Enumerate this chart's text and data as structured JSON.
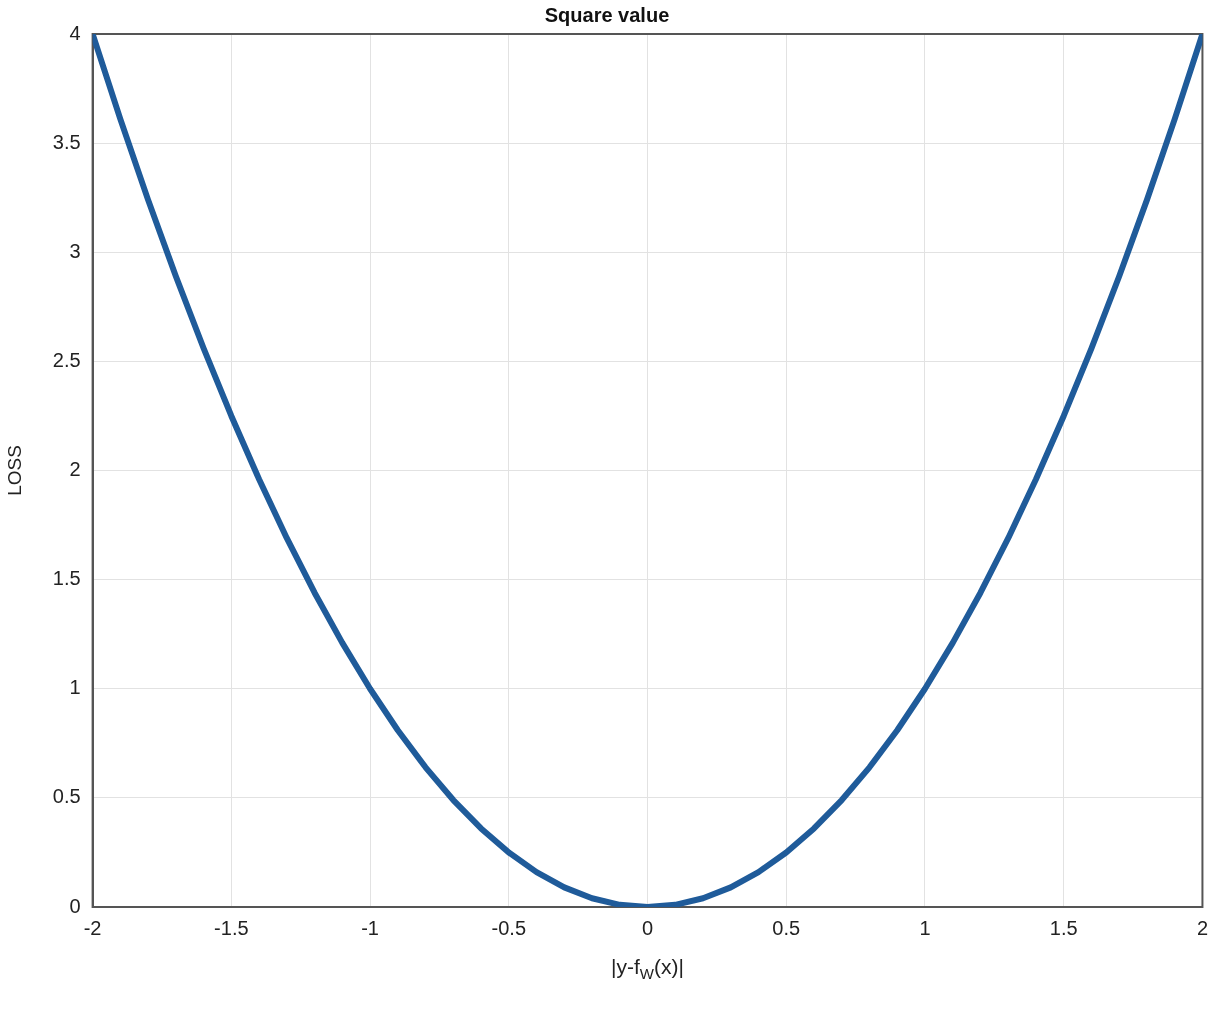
{
  "chart_data": {
    "type": "line",
    "title": "Square value",
    "xlabel": "|y-f$_{W}$(x)|",
    "ylabel": "LOSS",
    "x": [
      -2,
      -1.9,
      -1.8,
      -1.7,
      -1.6,
      -1.5,
      -1.4,
      -1.3,
      -1.2,
      -1.1,
      -1,
      -0.9,
      -0.8,
      -0.7,
      -0.6,
      -0.5,
      -0.4,
      -0.3,
      -0.2,
      -0.1,
      0,
      0.1,
      0.2,
      0.3,
      0.4,
      0.5,
      0.6,
      0.7,
      0.8,
      0.9,
      1,
      1.1,
      1.2,
      1.3,
      1.4,
      1.5,
      1.6,
      1.7,
      1.8,
      1.9,
      2
    ],
    "series": [
      {
        "color": "#1f5b9a",
        "values": [
          4,
          3.61,
          3.24,
          2.89,
          2.56,
          2.25,
          1.96,
          1.69,
          1.44,
          1.21,
          1,
          0.81,
          0.64,
          0.49,
          0.36,
          0.25,
          0.16,
          0.09,
          0.04,
          0.01,
          0,
          0.01,
          0.04,
          0.09,
          0.16,
          0.25,
          0.36,
          0.49,
          0.64,
          0.81,
          1,
          1.21,
          1.44,
          1.69,
          1.96,
          2.25,
          2.56,
          2.89,
          3.24,
          3.61,
          4
        ]
      }
    ],
    "xlim": [
      -2,
      2
    ],
    "xticks": [
      -2,
      -1.5,
      -1,
      -0.5,
      0,
      0.5,
      1,
      1.5,
      2
    ],
    "ylim": [
      0,
      4
    ],
    "yticks": [
      0,
      0.5,
      1,
      1.5,
      2,
      2.5,
      3,
      3.5,
      4
    ],
    "grid": true,
    "legend": false
  }
}
